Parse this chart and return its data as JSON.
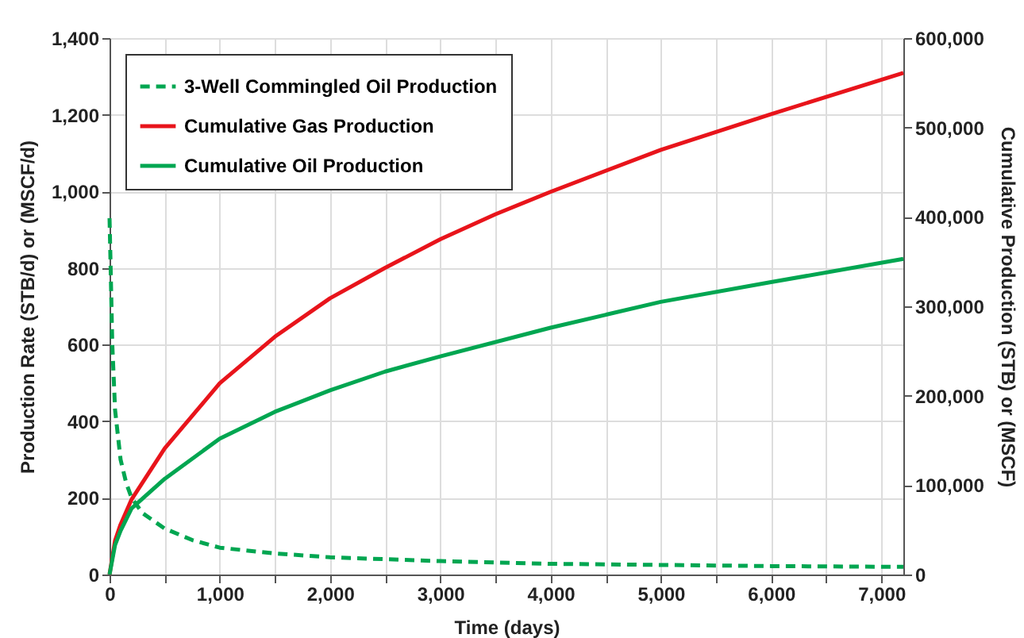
{
  "chart_data": {
    "type": "line",
    "xlabel": "Time (days)",
    "ylabel": "Production Rate (STB/d) or (MSCF/d)",
    "y2label": "Cumulative Production (STB) or (MSCF)",
    "xlim": [
      0,
      7200
    ],
    "xticks": [
      0,
      {
        "value": 500,
        "label": null
      },
      {
        "value": 1000,
        "label": "1,000"
      },
      {
        "value": 1500,
        "label": null
      },
      {
        "value": 2000,
        "label": "2,000"
      },
      {
        "value": 2500,
        "label": null
      },
      {
        "value": 3000,
        "label": "3,000"
      },
      {
        "value": 3500,
        "label": null
      },
      {
        "value": 4000,
        "label": "4,000"
      },
      {
        "value": 4500,
        "label": null
      },
      {
        "value": 5000,
        "label": "5,000"
      },
      {
        "value": 5500,
        "label": null
      },
      {
        "value": 6000,
        "label": "6,000"
      },
      {
        "value": 6500,
        "label": null
      },
      {
        "value": 7000,
        "label": "7,000"
      }
    ],
    "ylim": [
      0,
      1400
    ],
    "yticks": [
      0,
      200,
      400,
      600,
      800,
      {
        "value": 1000,
        "label": "1,000"
      },
      {
        "value": 1200,
        "label": "1,200"
      },
      {
        "value": 1400,
        "label": "1,400"
      }
    ],
    "y2lim": [
      0,
      600000
    ],
    "y2ticks": [
      0,
      {
        "value": 100000,
        "label": "100,000"
      },
      {
        "value": 200000,
        "label": "200,000"
      },
      {
        "value": 300000,
        "label": "300,000"
      },
      {
        "value": 400000,
        "label": "400,000"
      },
      {
        "value": 500000,
        "label": "500,000"
      },
      {
        "value": 600000,
        "label": "600,000"
      }
    ],
    "grid": true,
    "legend": "top left",
    "marker": "none",
    "series": [
      {
        "name": "3-Well Commingled Oil Production",
        "color": "#00a651",
        "line_style": "dashed",
        "x": [
          0,
          10,
          25,
          50,
          100,
          150,
          200,
          300,
          500,
          750,
          1000,
          1500,
          2000,
          2500,
          3000,
          4000,
          5000,
          6000,
          7200
        ],
        "values": [
          930,
          800,
          600,
          430,
          300,
          240,
          200,
          160,
          120,
          90,
          70,
          55,
          45,
          40,
          35,
          28,
          25,
          22,
          20
        ]
      },
      {
        "name": "Cumulative Gas Production",
        "color": "#e8141b",
        "axis": "y2",
        "line_style": "solid",
        "x": [
          0,
          50,
          100,
          200,
          500,
          1000,
          1500,
          2000,
          2500,
          3000,
          3500,
          4000,
          5000,
          6000,
          7200
        ],
        "values": [
          0,
          38000,
          56000,
          84000,
          141000,
          214000,
          266000,
          309000,
          343000,
          375000,
          403000,
          428000,
          475000,
          515000,
          561000
        ]
      },
      {
        "name": "Cumulative Oil Production",
        "color": "#00a651",
        "axis": "y2",
        "line_style": "solid",
        "x": [
          0,
          50,
          100,
          200,
          500,
          1000,
          1500,
          2000,
          2500,
          3000,
          4000,
          5000,
          6000,
          7200
        ],
        "values": [
          0,
          33000,
          49000,
          74000,
          107000,
          152000,
          182000,
          206000,
          227000,
          244000,
          276000,
          305000,
          327000,
          353000
        ]
      }
    ]
  }
}
